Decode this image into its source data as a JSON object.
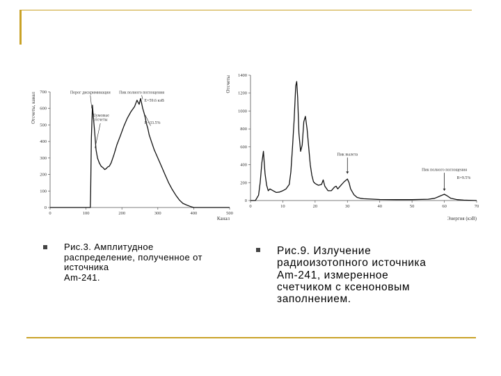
{
  "decor": {
    "accent": "#c9a227",
    "bullet_color": "#444444"
  },
  "chart_data": [
    {
      "type": "line",
      "title": "",
      "xlabel": "Канал",
      "ylabel": "Отсчеты, канал",
      "xlim": [
        0,
        500
      ],
      "ylim": [
        0,
        700
      ],
      "xticks": [
        "0",
        "100",
        "200",
        "300",
        "400",
        "500"
      ],
      "yticks": [
        "0",
        "100",
        "200",
        "300",
        "400",
        "500",
        "600",
        "700"
      ],
      "series": [
        {
          "x": [
            0,
            100,
            112,
            113,
            115,
            118,
            120,
            124,
            128,
            132,
            137,
            142,
            148,
            152,
            156,
            160,
            165,
            170,
            178,
            186,
            195,
            205,
            215,
            225,
            235,
            242,
            248,
            252,
            255,
            258,
            262,
            265,
            268,
            272,
            276,
            282,
            290,
            300,
            310,
            320,
            330,
            340,
            350,
            360,
            370,
            380,
            392,
            400,
            500
          ],
          "y": [
            0,
            0,
            0,
            100,
            420,
            620,
            560,
            460,
            350,
            300,
            270,
            250,
            240,
            230,
            235,
            245,
            250,
            270,
            320,
            380,
            430,
            490,
            540,
            580,
            610,
            650,
            625,
            660,
            630,
            600,
            570,
            545,
            510,
            480,
            440,
            400,
            350,
            300,
            250,
            200,
            150,
            110,
            75,
            45,
            25,
            15,
            5,
            0,
            0
          ]
        }
      ],
      "annotations": [
        {
          "text": "Порог дискриминации",
          "x": 112,
          "y": 690
        },
        {
          "text": "Пик полного поглощения",
          "x": 255,
          "y": 690
        },
        {
          "text": "Е=59.6 кэВ",
          "x": 290,
          "y": 640
        },
        {
          "text": "Шумовые",
          "x": 140,
          "y": 550
        },
        {
          "text": "отсчеты",
          "x": 140,
          "y": 525
        },
        {
          "text": "R=33.5%",
          "x": 285,
          "y": 505
        }
      ]
    },
    {
      "type": "line",
      "title": "",
      "xlabel": "Энергия (кэВ)",
      "ylabel": "Отсчеты",
      "xlim": [
        0,
        70
      ],
      "ylim": [
        0,
        1400
      ],
      "xticks": [
        "0",
        "10",
        "20",
        "30",
        "40",
        "50",
        "60",
        "70"
      ],
      "yticks": [
        "0",
        "200",
        "400",
        "600",
        "800",
        "1000",
        "1200",
        "1400"
      ],
      "series": [
        {
          "x": [
            0,
            1.5,
            2.5,
            3,
            3.5,
            4,
            4.5,
            5,
            5.5,
            6,
            7,
            8,
            9,
            10,
            11,
            12,
            12.5,
            13,
            13.5,
            14,
            14.3,
            14.6,
            15,
            15.5,
            16,
            16.5,
            17,
            17.5,
            18,
            18.5,
            19,
            19.5,
            20,
            21,
            22,
            22.5,
            23,
            24,
            25,
            26,
            26.5,
            27,
            28,
            29,
            30,
            30.5,
            31,
            32,
            33,
            34,
            35,
            40,
            45,
            50,
            55,
            57,
            58,
            59,
            60,
            61,
            62,
            64,
            66,
            70
          ],
          "y": [
            0,
            0,
            60,
            200,
            420,
            550,
            300,
            170,
            110,
            130,
            110,
            90,
            95,
            110,
            130,
            180,
            320,
            600,
            900,
            1280,
            1330,
            1150,
            750,
            550,
            620,
            880,
            940,
            800,
            600,
            400,
            280,
            210,
            190,
            170,
            180,
            230,
            160,
            110,
            110,
            150,
            160,
            130,
            170,
            210,
            240,
            200,
            130,
            65,
            35,
            25,
            20,
            12,
            10,
            10,
            15,
            25,
            40,
            55,
            70,
            50,
            25,
            10,
            5,
            0
          ]
        }
      ],
      "annotations": [
        {
          "text": "Пик вылета",
          "x": 30,
          "y": 500
        },
        {
          "text": "Пик полного поглощения",
          "x": 60,
          "y": 330
        },
        {
          "text": "R=9.5%",
          "x": 66,
          "y": 240
        }
      ]
    }
  ],
  "captions": [
    {
      "text": "Рис.3. Амплитудное\nраспределение, полученное от\nисточника\n  Am-241."
    },
    {
      "text": "Рис.9. Излучение\nрадиоизотопного источника\nAm-241, измеренное\nсчетчиком с ксеноновым\nзаполнением."
    }
  ]
}
